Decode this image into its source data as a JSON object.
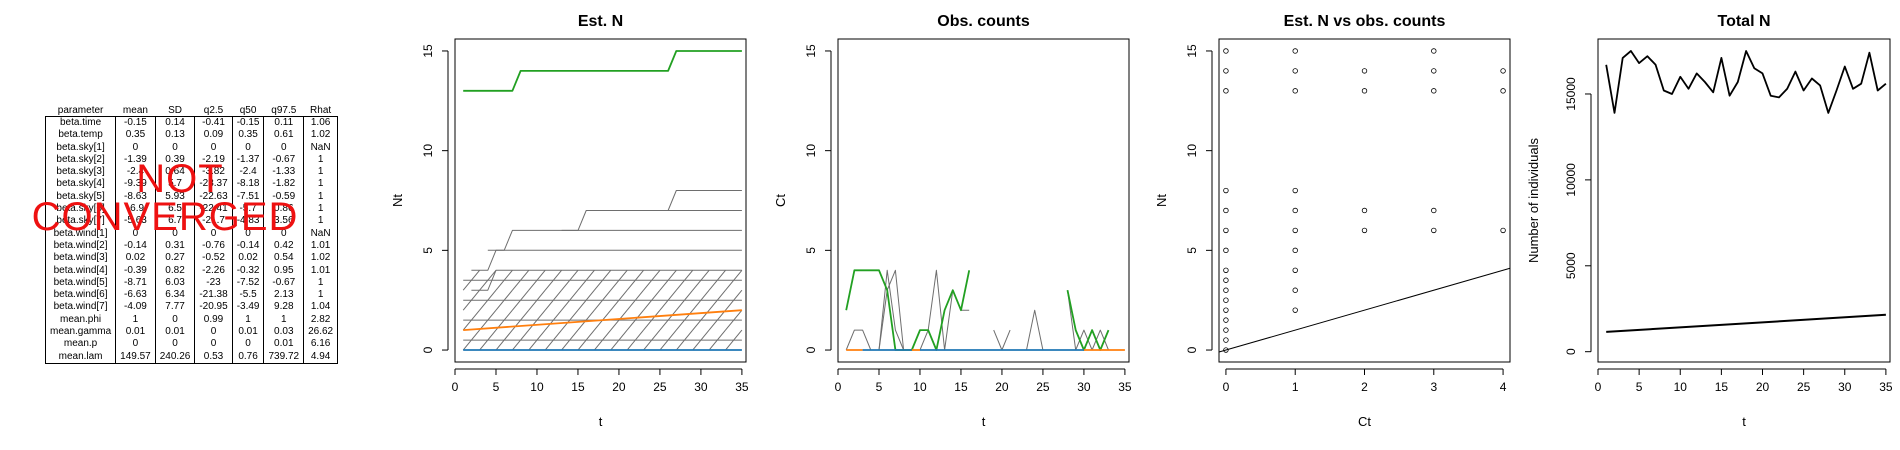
{
  "table": {
    "headers": [
      "parameter",
      "mean",
      "SD",
      "q2.5",
      "q50",
      "q97.5",
      "Rhat"
    ],
    "rows": [
      [
        "beta.time",
        "-0.15",
        "0.14",
        "-0.41",
        "-0.15",
        "0.11",
        "1.06"
      ],
      [
        "beta.temp",
        "0.35",
        "0.13",
        "0.09",
        "0.35",
        "0.61",
        "1.02"
      ],
      [
        "beta.sky[1]",
        "0",
        "0",
        "0",
        "0",
        "0",
        "NaN"
      ],
      [
        "beta.sky[2]",
        "-1.39",
        "0.39",
        "-2.19",
        "-1.37",
        "-0.67",
        "1"
      ],
      [
        "beta.sky[3]",
        "-2.4",
        "0.64",
        "-3.82",
        "-2.4",
        "-1.33",
        "1"
      ],
      [
        "beta.sky[4]",
        "-9.39",
        "5.7",
        "-23.37",
        "-8.18",
        "-1.82",
        "1"
      ],
      [
        "beta.sky[5]",
        "-8.63",
        "5.93",
        "-22.63",
        "-7.51",
        "-0.59",
        "1"
      ],
      [
        "beta.sky[6]",
        "-6.9",
        "6.5",
        "-22.41",
        "-5.7",
        "0.86",
        "1"
      ],
      [
        "beta.sky[7]",
        "-5.63",
        "6.7",
        "-21.7",
        "-4.83",
        "3.56",
        "1"
      ],
      [
        "beta.wind[1]",
        "0",
        "0",
        "0",
        "0",
        "0",
        "NaN"
      ],
      [
        "beta.wind[2]",
        "-0.14",
        "0.31",
        "-0.76",
        "-0.14",
        "0.42",
        "1.01"
      ],
      [
        "beta.wind[3]",
        "0.02",
        "0.27",
        "-0.52",
        "0.02",
        "0.54",
        "1.02"
      ],
      [
        "beta.wind[4]",
        "-0.39",
        "0.82",
        "-2.26",
        "-0.32",
        "0.95",
        "1.01"
      ],
      [
        "beta.wind[5]",
        "-8.71",
        "6.03",
        "-23",
        "-7.52",
        "-0.67",
        "1"
      ],
      [
        "beta.wind[6]",
        "-6.63",
        "6.34",
        "-21.38",
        "-5.5",
        "2.13",
        "1"
      ],
      [
        "beta.wind[7]",
        "-4.09",
        "7.77",
        "-20.95",
        "-3.49",
        "9.28",
        "1.04"
      ],
      [
        "mean.phi",
        "1",
        "0",
        "0.99",
        "1",
        "1",
        "2.82"
      ],
      [
        "mean.gamma",
        "0.01",
        "0.01",
        "0",
        "0.01",
        "0.03",
        "26.62"
      ],
      [
        "mean.p",
        "0",
        "0",
        "0",
        "0",
        "0.01",
        "6.16"
      ],
      [
        "mean.lam",
        "149.57",
        "240.26",
        "0.53",
        "0.76",
        "739.72",
        "4.94"
      ]
    ]
  },
  "stamp": {
    "line1": "NOT",
    "line2": "CONVERGED",
    "color": "#ee1111"
  },
  "colors": {
    "green": "#22a022",
    "orange": "#ff7f0e",
    "blue": "#1f77b4",
    "grey": "#6e6e6e"
  },
  "chart_data": [
    {
      "type": "line",
      "title": "Est. N",
      "xlabel": "t",
      "ylabel": "Nt",
      "xlim": [
        0,
        35.5
      ],
      "ylim": [
        -0.6,
        15.6
      ],
      "xticks": [
        0,
        5,
        10,
        15,
        20,
        25,
        30,
        35
      ],
      "yticks": [
        0,
        5,
        10,
        15
      ],
      "series": [
        {
          "color": "#22a022",
          "x": [
            1,
            7,
            8,
            26,
            27,
            35
          ],
          "y": [
            13,
            13,
            14,
            14,
            15,
            15
          ]
        },
        {
          "color": "#ff7f0e",
          "x": [
            1,
            35
          ],
          "y": [
            1,
            2
          ]
        },
        {
          "color": "#1f77b4",
          "x": [
            1,
            35
          ],
          "y": [
            0,
            0
          ]
        },
        {
          "color": "#6e6e6e",
          "x": [
            4,
            6,
            7,
            35
          ],
          "y": [
            5,
            5,
            6,
            6
          ]
        },
        {
          "color": "#6e6e6e",
          "x": [
            13,
            15,
            16,
            35
          ],
          "y": [
            6,
            6,
            7,
            7
          ]
        },
        {
          "color": "#6e6e6e",
          "x": [
            24,
            26,
            27,
            35
          ],
          "y": [
            7,
            7,
            8,
            8
          ]
        },
        {
          "color": "#6e6e6e",
          "x": [
            2,
            4,
            5,
            35
          ],
          "y": [
            4,
            4,
            5,
            5
          ]
        },
        {
          "color": "#6e6e6e",
          "x": [
            2,
            4,
            5,
            35
          ],
          "y": [
            3,
            3,
            4,
            4
          ]
        },
        {
          "color": "#6e6e6e",
          "x": [
            1,
            35
          ],
          "y": [
            3.5,
            3.5
          ]
        },
        {
          "color": "#6e6e6e",
          "x": [
            1,
            35
          ],
          "y": [
            2.5,
            2.5
          ]
        },
        {
          "color": "#6e6e6e",
          "x": [
            1,
            35
          ],
          "y": [
            1.5,
            1.5
          ]
        },
        {
          "color": "#6e6e6e",
          "x": [
            1,
            35
          ],
          "y": [
            0.5,
            0.5
          ]
        }
      ],
      "diagonals": {
        "color": "#6e6e6e",
        "x_starts": [
          1,
          3,
          5,
          7,
          9,
          11,
          13,
          15,
          17,
          19,
          21,
          23,
          25,
          27,
          29,
          31,
          33
        ],
        "bands": [
          [
            0,
            1
          ],
          [
            1,
            2
          ],
          [
            2,
            3
          ],
          [
            3,
            4
          ]
        ]
      }
    },
    {
      "type": "line",
      "title": "Obs. counts",
      "xlabel": "t",
      "ylabel": "Ct",
      "xlim": [
        0,
        35.5
      ],
      "ylim": [
        -0.6,
        15.6
      ],
      "xticks": [
        0,
        5,
        10,
        15,
        20,
        25,
        30,
        35
      ],
      "yticks": [
        0,
        5,
        10,
        15
      ],
      "series": [
        {
          "color": "#6e6e6e",
          "x": [
            1,
            2,
            3,
            4,
            5,
            6,
            7,
            8,
            9
          ],
          "y": [
            0,
            1,
            1,
            0,
            0,
            4,
            1,
            0,
            0
          ]
        },
        {
          "color": "#6e6e6e",
          "x": [
            5,
            6,
            7,
            8
          ],
          "y": [
            0,
            3,
            4,
            0
          ]
        },
        {
          "color": "#6e6e6e",
          "x": [
            10,
            11,
            12,
            13,
            14,
            15,
            16
          ],
          "y": [
            0,
            1,
            4,
            0,
            3,
            2,
            2
          ]
        },
        {
          "color": "#6e6e6e",
          "x": [
            19,
            20,
            21
          ],
          "y": [
            1,
            0,
            1
          ]
        },
        {
          "color": "#6e6e6e",
          "x": [
            23,
            24,
            25,
            26
          ],
          "y": [
            0,
            2,
            0,
            0
          ]
        },
        {
          "color": "#6e6e6e",
          "x": [
            28,
            29,
            30,
            31,
            32,
            33
          ],
          "y": [
            3,
            0,
            1,
            0,
            1,
            0
          ]
        },
        {
          "color": "#22a022",
          "x": [
            1,
            2,
            3,
            4,
            5,
            6,
            7,
            8,
            9,
            10,
            11,
            12,
            13,
            14,
            15,
            16
          ],
          "y": [
            2,
            4,
            4,
            4,
            4,
            3,
            0,
            0,
            0,
            1,
            1,
            0,
            2,
            3,
            2,
            4
          ]
        },
        {
          "color": "#22a022",
          "x": [
            28,
            29,
            30,
            31,
            32,
            33
          ],
          "y": [
            3,
            1,
            0,
            1,
            0,
            1
          ]
        },
        {
          "color": "#ff7f0e",
          "x": [
            1,
            3
          ],
          "y": [
            0,
            0
          ]
        },
        {
          "color": "#ff7f0e",
          "x": [
            9,
            10
          ],
          "y": [
            0,
            0
          ]
        },
        {
          "color": "#ff7f0e",
          "x": [
            30,
            35
          ],
          "y": [
            0,
            0
          ]
        },
        {
          "color": "#1f77b4",
          "x": [
            3,
            9
          ],
          "y": [
            0,
            0
          ]
        },
        {
          "color": "#1f77b4",
          "x": [
            10,
            30
          ],
          "y": [
            0,
            0
          ]
        }
      ]
    },
    {
      "type": "scatter",
      "title": "Est. N vs obs. counts",
      "xlabel": "Ct",
      "ylabel": "Nt",
      "xlim": [
        -0.1,
        4.1
      ],
      "ylim": [
        -0.6,
        15.6
      ],
      "xticks": [
        0,
        1,
        2,
        3,
        4
      ],
      "yticks": [
        0,
        5,
        10,
        15
      ],
      "points": [
        [
          0,
          15
        ],
        [
          0,
          14
        ],
        [
          0,
          13
        ],
        [
          0,
          8
        ],
        [
          0,
          7
        ],
        [
          0,
          6
        ],
        [
          0,
          5
        ],
        [
          0,
          4
        ],
        [
          0,
          3.5
        ],
        [
          0,
          3
        ],
        [
          0,
          2.5
        ],
        [
          0,
          2
        ],
        [
          0,
          1.5
        ],
        [
          0,
          1
        ],
        [
          0,
          0.5
        ],
        [
          0,
          0
        ],
        [
          1,
          15
        ],
        [
          1,
          14
        ],
        [
          1,
          13
        ],
        [
          1,
          8
        ],
        [
          1,
          7
        ],
        [
          1,
          6
        ],
        [
          1,
          5
        ],
        [
          1,
          4
        ],
        [
          1,
          3
        ],
        [
          1,
          2
        ],
        [
          2,
          14
        ],
        [
          2,
          13
        ],
        [
          2,
          7
        ],
        [
          2,
          6
        ],
        [
          3,
          15
        ],
        [
          3,
          14
        ],
        [
          3,
          13
        ],
        [
          3,
          7
        ],
        [
          3,
          6
        ],
        [
          4,
          14
        ],
        [
          4,
          13
        ],
        [
          4,
          6
        ]
      ],
      "abline": {
        "x": [
          -0.1,
          4.1
        ],
        "y": [
          -0.1,
          4.1
        ]
      }
    },
    {
      "type": "line",
      "title": "Total N",
      "xlabel": "t",
      "ylabel": "Number of individuals",
      "xlim": [
        0,
        35.5
      ],
      "ylim": [
        -600,
        18200
      ],
      "xticks": [
        0,
        5,
        10,
        15,
        20,
        25,
        30,
        35
      ],
      "yticks": [
        0,
        5000,
        10000,
        15000
      ],
      "series": [
        {
          "color": "#000000",
          "x": [
            1,
            2,
            3,
            4,
            5,
            6,
            7,
            8,
            9,
            10,
            11,
            12,
            13,
            14,
            15,
            16,
            17,
            18,
            19,
            20,
            21,
            22,
            23,
            24,
            25,
            26,
            27,
            28,
            29,
            30,
            31,
            32,
            33,
            34,
            35
          ],
          "y": [
            16700,
            13900,
            17100,
            17500,
            16800,
            17200,
            16700,
            15200,
            15000,
            16000,
            15300,
            16200,
            15700,
            15100,
            17100,
            14900,
            15700,
            17500,
            16500,
            16200,
            14900,
            14800,
            15300,
            16300,
            15200,
            15900,
            15500,
            13900,
            15200,
            16600,
            15300,
            15600,
            17400,
            15200,
            15600
          ]
        },
        {
          "color": "#000000",
          "width": 2,
          "x": [
            1,
            35
          ],
          "y": [
            1150,
            2150
          ]
        }
      ]
    }
  ]
}
